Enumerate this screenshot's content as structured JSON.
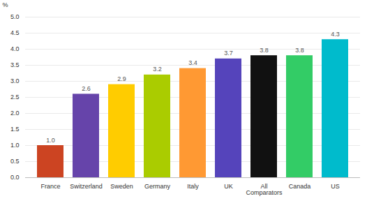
{
  "chart_data": {
    "type": "bar",
    "categories": [
      "France",
      "Switzerland",
      "Sweden",
      "Germany",
      "Italy",
      "UK",
      "All\nComparators",
      "Canada",
      "US"
    ],
    "values": [
      1.0,
      2.6,
      2.9,
      3.2,
      3.4,
      3.7,
      3.8,
      3.8,
      4.3
    ],
    "value_labels": [
      "1.0",
      "2.6",
      "2.9",
      "3.2",
      "3.4",
      "3.7",
      "3.8",
      "3.8",
      "4.3"
    ],
    "data_labels": true,
    "colors": [
      "#cc4422",
      "#6644aa",
      "#ffcc00",
      "#aacc00",
      "#ff9933",
      "#5544bb",
      "#111111",
      "#33cc66",
      "#00bbcc"
    ],
    "ylabel": "%",
    "ylim": [
      0,
      5.0
    ],
    "yticks": [
      {
        "value": 0,
        "label": "0.0"
      },
      0.5,
      {
        "value": 1,
        "label": "1.0"
      },
      1.5,
      {
        "value": 2,
        "label": "2.0"
      },
      2.5,
      {
        "value": 3,
        "label": "3.0"
      },
      3.5,
      {
        "value": 4,
        "label": "4.0"
      },
      4.5,
      {
        "value": 5,
        "label": "5.0"
      }
    ],
    "grid": true
  }
}
